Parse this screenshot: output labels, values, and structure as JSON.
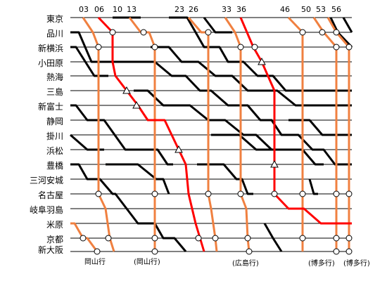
{
  "stations": [
    "東京",
    "品川",
    "新横浜",
    "小田原",
    "熱海",
    "三島",
    "新富士",
    "静岡",
    "掛川",
    "浜松",
    "豊橋",
    "三河安城",
    "名古屋",
    "岐阜羽島",
    "米原",
    "京都",
    "新大阪"
  ],
  "minute_labels": [
    "03",
    "06",
    "10",
    "13",
    "23",
    "26",
    "33",
    "36",
    "46",
    "50",
    "53",
    "56"
  ],
  "destinations": [
    "岡山行",
    "(岡山行)",
    "(広島行)",
    "(博多行)",
    "(博多行)"
  ],
  "colors": {
    "line": "#000000",
    "stop_train": "#f08040",
    "highlight_train": "#ff0000",
    "station_line": "#000000"
  },
  "symbols": {
    "stop": "circle",
    "passing_stop": "triangle"
  }
}
